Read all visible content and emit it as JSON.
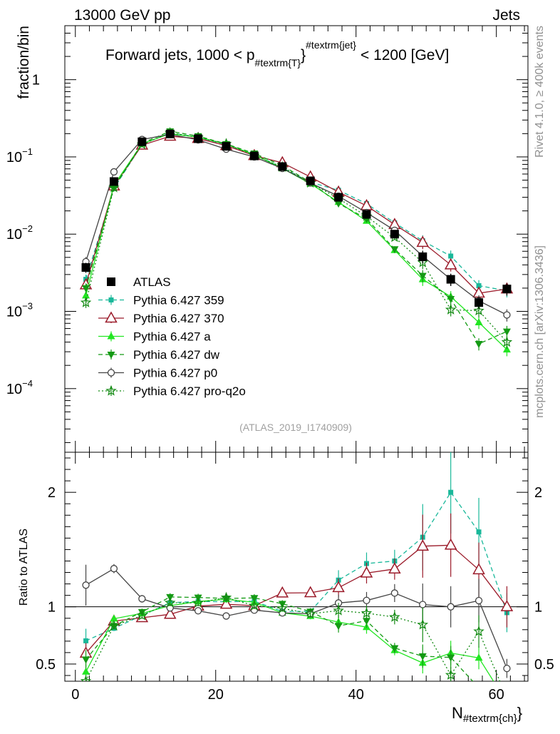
{
  "header": {
    "energy": "13000 GeV pp",
    "process": "Jets",
    "title_main": "Forward jets, 1000 < p",
    "title_sub": "#textrm{T}",
    "title_sup": "#textrm{jet}",
    "title_end": "< 1200 [GeV]",
    "rivet_label": "Rivet 4.1.0, ≥ 400k events",
    "mcplots_label": "mcplots.cern.ch [arXiv:1306.3436]",
    "analysis_id": "(ATLAS_2019_I1740909)"
  },
  "axes": {
    "top_ylabel": "fraction/bin",
    "bottom_ylabel": "Ratio to ATLAS",
    "xlabel_main": "N",
    "xlabel_sub": "#textrm{ch}",
    "x_ticks": [
      "0",
      "20",
      "40",
      "60"
    ],
    "top_y_ticks": [
      {
        "base": "10",
        "exp": "−4"
      },
      {
        "base": "10",
        "exp": "−3"
      },
      {
        "base": "10",
        "exp": "−2"
      },
      {
        "base": "10",
        "exp": "−1"
      },
      {
        "base": "1",
        "exp": ""
      }
    ],
    "ratio_ticks": [
      "0.5",
      "1",
      "2"
    ]
  },
  "colors": {
    "atlas": "#000000",
    "p359": "#19b89a",
    "p370": "#9b1b2a",
    "pa": "#22e622",
    "pdw": "#149a14",
    "pp0": "#444444",
    "pq2o": "#138a13"
  },
  "legend": [
    {
      "key": "atlas",
      "label": "ATLAS"
    },
    {
      "key": "p359",
      "label": "Pythia 6.427 359"
    },
    {
      "key": "p370",
      "label": "Pythia 6.427 370"
    },
    {
      "key": "pa",
      "label": "Pythia 6.427 a"
    },
    {
      "key": "pdw",
      "label": "Pythia 6.427 dw"
    },
    {
      "key": "pp0",
      "label": "Pythia 6.427 p0"
    },
    {
      "key": "pq2o",
      "label": "Pythia 6.427 pro-q2o"
    }
  ],
  "chart_data": {
    "type": "line",
    "title": "Forward jets, 1000 < p_T^jet < 1200 [GeV]",
    "xlabel": "N_ch",
    "ylabel": "fraction/bin",
    "y_scale": "log",
    "xlim": [
      -1.5,
      64.5
    ],
    "ylim": [
      1.5e-05,
      5
    ],
    "ratio_ylim": [
      0.35,
      2.35
    ],
    "x": [
      1.5,
      5.5,
      9.5,
      13.5,
      17.5,
      21.5,
      25.5,
      29.5,
      33.5,
      37.5,
      41.5,
      45.5,
      49.5,
      53.5,
      57.5,
      61.5
    ],
    "atlas": [
      0.0037,
      0.048,
      0.157,
      0.198,
      0.172,
      0.137,
      0.103,
      0.075,
      0.049,
      0.03,
      0.018,
      0.01,
      0.0051,
      0.0026,
      0.0013,
      0.00195
    ],
    "series": [
      {
        "key": "p359",
        "name": "Pythia 6.427 359",
        "values": [
          0.0026,
          0.039,
          0.145,
          0.205,
          0.18,
          0.143,
          0.108,
          0.072,
          0.047,
          0.037,
          0.0248,
          0.014,
          0.0082,
          0.0052,
          0.00215,
          0.00185
        ]
      },
      {
        "key": "p370",
        "name": "Pythia 6.427 370",
        "values": [
          0.0022,
          0.042,
          0.142,
          0.185,
          0.173,
          0.14,
          0.104,
          0.084,
          0.055,
          0.035,
          0.0233,
          0.0133,
          0.0078,
          0.004,
          0.00172,
          0.00195
        ]
      },
      {
        "key": "pa",
        "name": "Pythia 6.427 a",
        "values": [
          0.0016,
          0.043,
          0.148,
          0.2,
          0.18,
          0.146,
          0.107,
          0.071,
          0.045,
          0.026,
          0.0148,
          0.0062,
          0.0026,
          0.00155,
          0.00072,
          0.00032
        ]
      },
      {
        "key": "pdw",
        "name": "Pythia 6.427 dw",
        "values": [
          0.002,
          0.04,
          0.15,
          0.215,
          0.186,
          0.147,
          0.111,
          0.077,
          0.047,
          0.025,
          0.0158,
          0.0064,
          0.0029,
          0.00145,
          0.00038,
          0.00055
        ]
      },
      {
        "key": "pp0",
        "name": "Pythia 6.427 p0",
        "values": [
          0.0044,
          0.064,
          0.168,
          0.196,
          0.166,
          0.126,
          0.1,
          0.071,
          0.046,
          0.031,
          0.019,
          0.0112,
          0.0052,
          0.0026,
          0.00137,
          0.0009
        ]
      },
      {
        "key": "pq2o",
        "name": "Pythia 6.427 pro-q2o",
        "values": [
          0.0013,
          0.04,
          0.145,
          0.205,
          0.178,
          0.148,
          0.104,
          0.074,
          0.046,
          0.029,
          0.017,
          0.0091,
          0.0043,
          0.00105,
          0.00102,
          0.0004
        ]
      }
    ]
  }
}
